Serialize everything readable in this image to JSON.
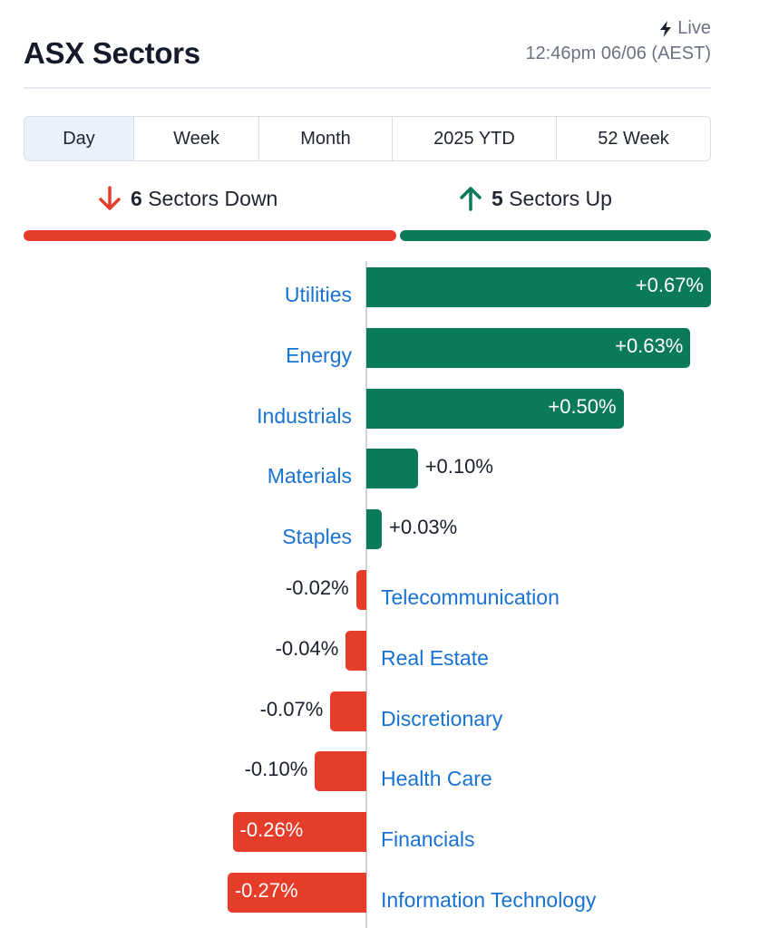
{
  "header": {
    "title": "ASX Sectors",
    "live_label": "Live",
    "timestamp": "12:46pm 06/06 (AEST)"
  },
  "tabs": [
    {
      "label": "Day",
      "active": true
    },
    {
      "label": "Week",
      "active": false
    },
    {
      "label": "Month",
      "active": false
    },
    {
      "label": "2025 YTD",
      "active": false
    },
    {
      "label": "52 Week",
      "active": false
    }
  ],
  "summary": {
    "down_count": "6",
    "down_label": "Sectors Down",
    "up_count": "5",
    "up_label": "Sectors Up"
  },
  "colors": {
    "up": "#0b7a5a",
    "down": "#e63c2a",
    "link": "#1872d3"
  },
  "icons": {
    "live": "lightning-bolt-icon",
    "down": "arrow-down-icon",
    "up": "arrow-up-icon"
  },
  "chart_data": {
    "type": "bar",
    "orientation": "horizontal",
    "categories": [
      "Utilities",
      "Energy",
      "Industrials",
      "Materials",
      "Staples",
      "Telecommunication",
      "Real Estate",
      "Discretionary",
      "Health Care",
      "Financials",
      "Information Technology"
    ],
    "values": [
      0.67,
      0.63,
      0.5,
      0.1,
      0.03,
      -0.02,
      -0.04,
      -0.07,
      -0.1,
      -0.26,
      -0.27
    ],
    "labels": [
      "+0.67%",
      "+0.63%",
      "+0.50%",
      "+0.10%",
      "+0.03%",
      "-0.02%",
      "-0.04%",
      "-0.07%",
      "-0.10%",
      "-0.26%",
      "-0.27%"
    ]
  }
}
